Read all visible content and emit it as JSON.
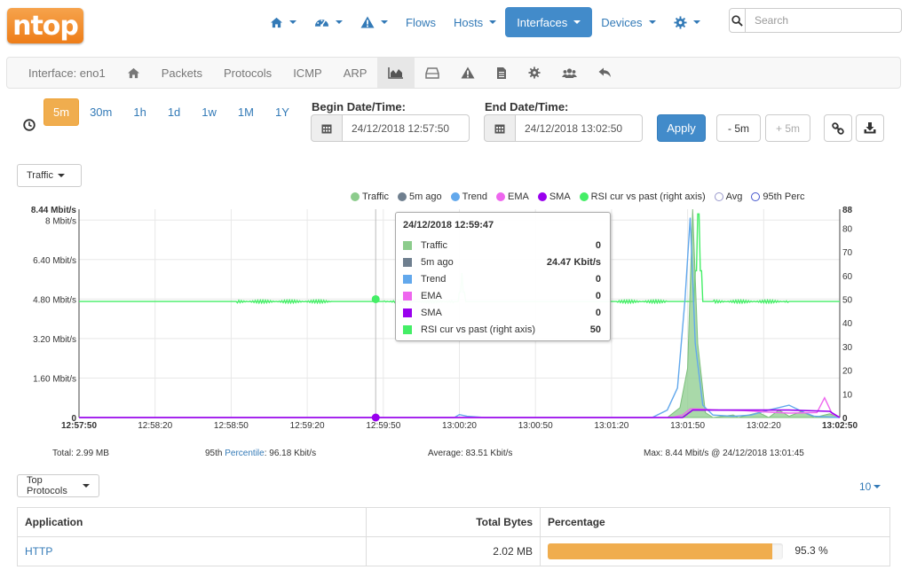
{
  "brand": {
    "logo_text": "ntop",
    "color": "#ee7d18"
  },
  "topnav": {
    "items": [
      {
        "icon": "home-icon",
        "label": ""
      },
      {
        "icon": "dashboard-icon",
        "label": ""
      },
      {
        "icon": "alert-icon",
        "label": ""
      },
      {
        "icon": "",
        "label": "Flows"
      },
      {
        "icon": "",
        "label": "Hosts"
      },
      {
        "icon": "",
        "label": "Interfaces",
        "active": true
      },
      {
        "icon": "",
        "label": "Devices"
      },
      {
        "icon": "gear-icon",
        "label": ""
      }
    ],
    "search_placeholder": "Search"
  },
  "subnav": {
    "interface_label": "Interface: eno1",
    "packets": "Packets",
    "protocols": "Protocols",
    "icmp": "ICMP",
    "arp": "ARP"
  },
  "time": {
    "ranges": [
      "5m",
      "30m",
      "1h",
      "1d",
      "1w",
      "1M",
      "1Y"
    ],
    "active_range": "5m",
    "begin_label": "Begin Date/Time:",
    "begin_value": "24/12/2018 12:57:50",
    "end_label": "End Date/Time:",
    "end_value": "24/12/2018 13:02:50",
    "apply": "Apply",
    "minus": "- 5m",
    "plus": "+ 5m"
  },
  "chart_selector": "Traffic",
  "protocols_selector": "Top Protocols",
  "page_size": "10",
  "chart_data": {
    "type": "area",
    "legend": [
      {
        "name": "Traffic",
        "color": "#8ccc8c",
        "hollow": false
      },
      {
        "name": "5m ago",
        "color": "#6f7f8f",
        "hollow": false
      },
      {
        "name": "Trend",
        "color": "#62a8ec",
        "hollow": false
      },
      {
        "name": "EMA",
        "color": "#ee66ee",
        "hollow": false
      },
      {
        "name": "SMA",
        "color": "#9900ee",
        "hollow": false
      },
      {
        "name": "RSI cur vs past (right axis)",
        "color": "#44ee66",
        "hollow": false
      },
      {
        "name": "Avg",
        "color": "#9999cc",
        "hollow": true
      },
      {
        "name": "95th Perc",
        "color": "#4455cc",
        "hollow": true
      }
    ],
    "y_left_ticks": [
      "0",
      "1.60 Mbit/s",
      "3.20 Mbit/s",
      "4.80 Mbit/s",
      "6.40 Mbit/s",
      "8 Mbit/s"
    ],
    "y_left_top": "8.44 Mbit/s",
    "y_left_max": 8.44,
    "y_right_ticks": [
      "0",
      "10",
      "20",
      "30",
      "40",
      "50",
      "60",
      "70",
      "80",
      "88"
    ],
    "y_right_max": 88,
    "x_ticks": [
      "12:57:50",
      "12:58:20",
      "12:58:50",
      "12:59:20",
      "12:59:50",
      "13:00:20",
      "13:00:50",
      "13:01:20",
      "13:01:50",
      "13:02:20",
      "13:02:50"
    ],
    "x_range_seconds": [
      0,
      300
    ],
    "traffic": [
      [
        0,
        0
      ],
      [
        200,
        0
      ],
      [
        232,
        0
      ],
      [
        237,
        0.4
      ],
      [
        240,
        2
      ],
      [
        242,
        8.44
      ],
      [
        244,
        3
      ],
      [
        247,
        0.2
      ],
      [
        250,
        0
      ],
      [
        258,
        0.1
      ],
      [
        260,
        0
      ],
      [
        268,
        0.2
      ],
      [
        272,
        0
      ],
      [
        276,
        0.3
      ],
      [
        280,
        0.05
      ],
      [
        285,
        0.25
      ],
      [
        290,
        0
      ],
      [
        296,
        0.15
      ],
      [
        300,
        0
      ]
    ],
    "trend": [
      [
        0,
        0
      ],
      [
        148,
        0
      ],
      [
        150,
        0.12
      ],
      [
        153,
        0.05
      ],
      [
        160,
        0
      ],
      [
        200,
        0
      ],
      [
        226,
        0
      ],
      [
        232,
        0.3
      ],
      [
        236,
        1.2
      ],
      [
        239,
        4.8
      ],
      [
        241,
        8.1
      ],
      [
        243,
        3
      ],
      [
        246,
        0.5
      ],
      [
        250,
        0.1
      ],
      [
        258,
        0.05
      ],
      [
        265,
        0.1
      ],
      [
        272,
        0.3
      ],
      [
        280,
        0.5
      ],
      [
        286,
        0.2
      ],
      [
        290,
        0.05
      ],
      [
        300,
        0
      ]
    ],
    "ema": [
      [
        0,
        0
      ],
      [
        234,
        0
      ],
      [
        238,
        0.1
      ],
      [
        241,
        0.35
      ],
      [
        244,
        0.35
      ],
      [
        252,
        0.3
      ],
      [
        262,
        0.28
      ],
      [
        272,
        0.22
      ],
      [
        280,
        0.18
      ],
      [
        291,
        0.2
      ],
      [
        294,
        0.8
      ],
      [
        297,
        0.15
      ],
      [
        300,
        0
      ]
    ],
    "sma": [
      [
        0,
        0
      ],
      [
        238,
        0
      ],
      [
        242,
        0.3
      ],
      [
        280,
        0.3
      ],
      [
        296,
        0.25
      ],
      [
        300,
        0
      ]
    ],
    "rsi": [
      [
        0,
        49
      ],
      [
        243,
        49
      ],
      [
        244,
        86
      ],
      [
        245,
        49
      ],
      [
        300,
        49
      ]
    ],
    "tooltip": {
      "time": "24/12/2018 12:59:47",
      "rows": [
        {
          "name": "Traffic",
          "value": "0",
          "color": "#8ccc8c"
        },
        {
          "name": "5m ago",
          "value": "24.47 Kbit/s",
          "color": "#6f7f8f"
        },
        {
          "name": "Trend",
          "value": "0",
          "color": "#62a8ec"
        },
        {
          "name": "EMA",
          "value": "0",
          "color": "#ee66ee"
        },
        {
          "name": "SMA",
          "value": "0",
          "color": "#9900ee"
        },
        {
          "name": "RSI cur vs past (right axis)",
          "value": "50",
          "color": "#44ee66"
        }
      ]
    }
  },
  "stats": {
    "total": "Total: 2.99 MB",
    "perc_prefix": "95th ",
    "perc_link": "Percentile",
    "perc_value": ": 96.18 Kbit/s",
    "average": "Average: 83.51 Kbit/s",
    "max": "Max: 8.44 Mbit/s @ 24/12/2018 13:01:45"
  },
  "table": {
    "headers": [
      "Application",
      "Total Bytes",
      "Percentage"
    ],
    "rows": [
      {
        "app": "HTTP",
        "bytes": "2.02 MB",
        "percent": 95.3,
        "percent_label": "95.3 %"
      }
    ]
  }
}
